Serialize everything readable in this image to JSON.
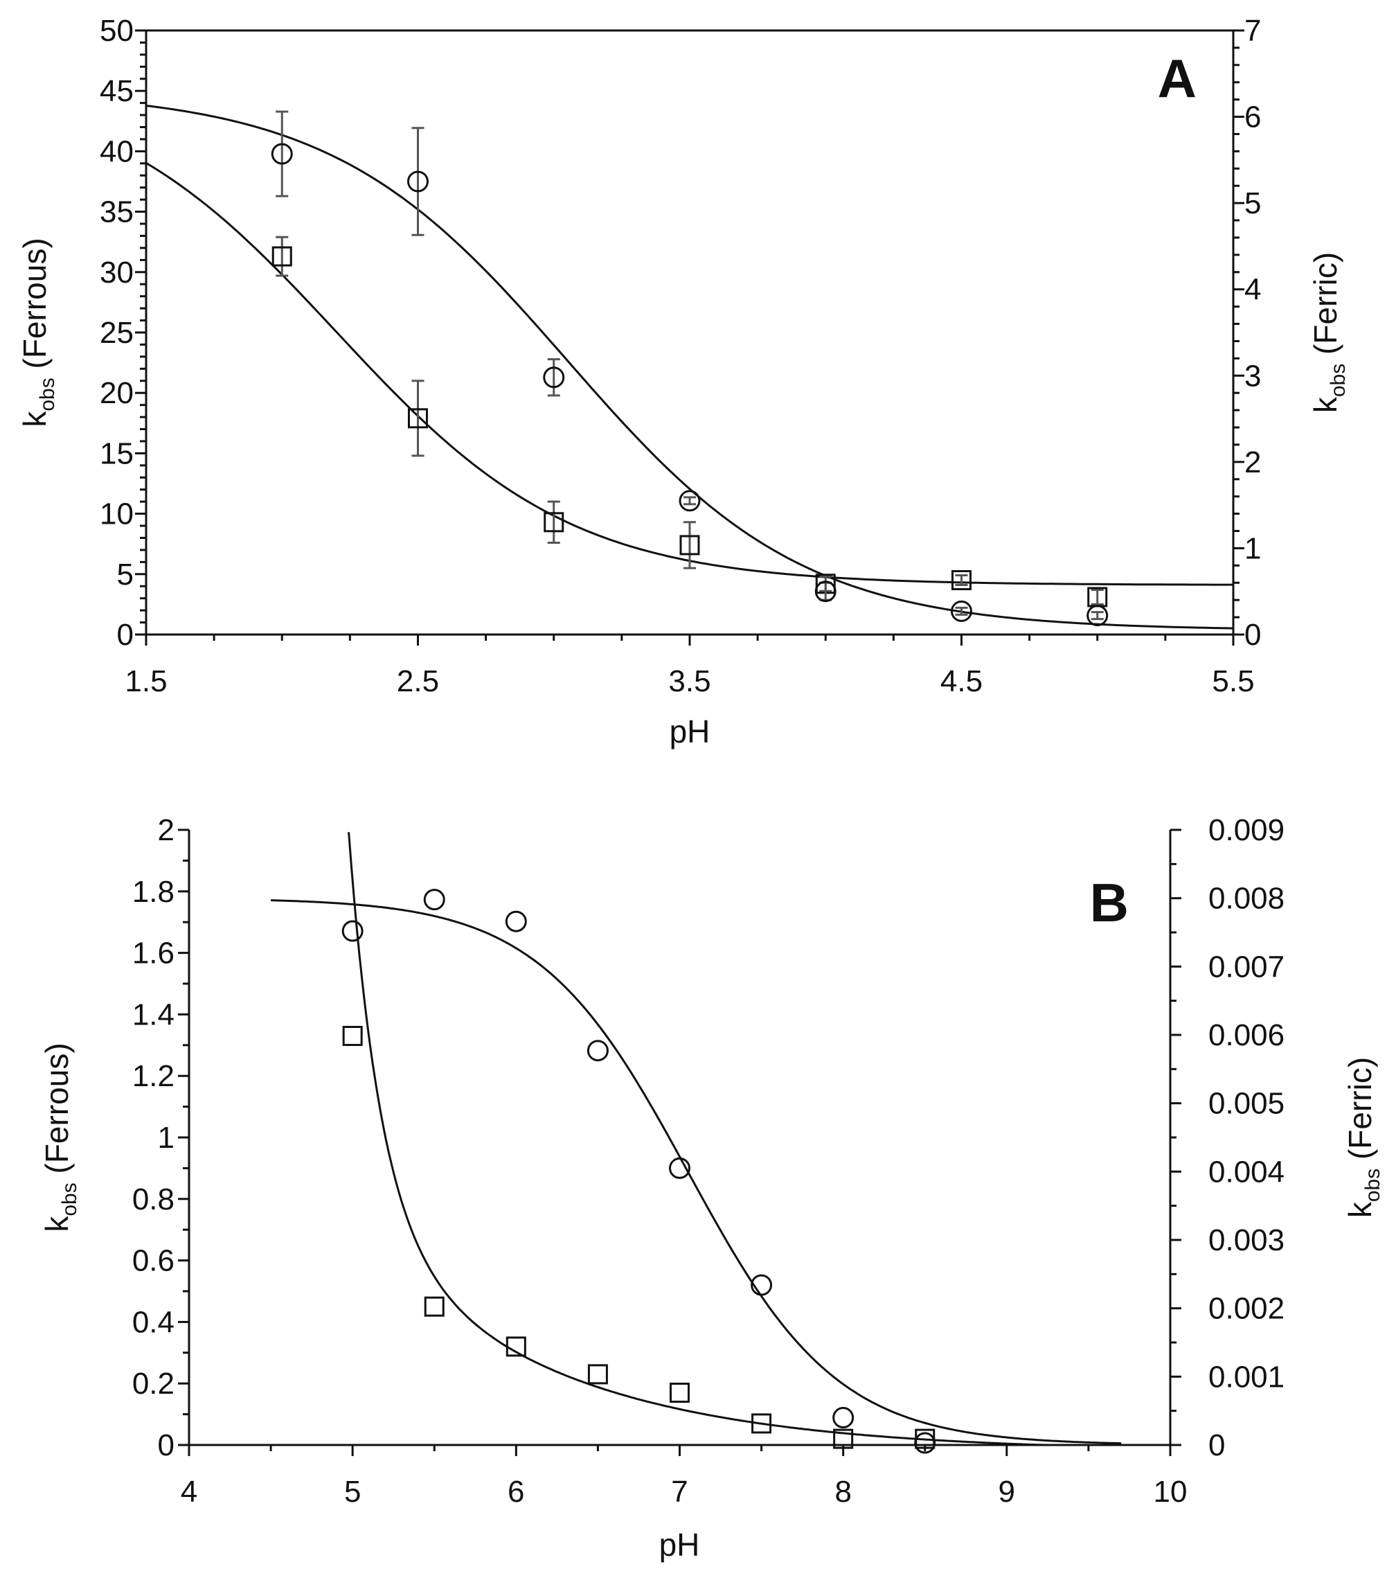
{
  "chart_data": [
    {
      "type": "scatter",
      "panel_label": "A",
      "xlabel": "pH",
      "ylabel_left": {
        "main": "k",
        "sub": "obs",
        "rest": " (Ferrous)"
      },
      "ylabel_right": {
        "main": "k",
        "sub": "obs",
        "rest": " (Ferric)"
      },
      "xlim": [
        1.5,
        5.5
      ],
      "ylim_left": [
        0,
        50
      ],
      "ylim_right": [
        0,
        7
      ],
      "x_ticks": [
        "1.5",
        "2.5",
        "3.5",
        "4.5",
        "5.5"
      ],
      "y_ticks_left": [
        "0",
        "5",
        "10",
        "15",
        "20",
        "25",
        "30",
        "35",
        "40",
        "45",
        "50"
      ],
      "y_ticks_right": [
        "0",
        "1",
        "2",
        "3",
        "4",
        "5",
        "6",
        "7"
      ],
      "series": [
        {
          "name": "Ferrous",
          "marker": "square",
          "axis": "left",
          "x": [
            2.0,
            2.5,
            3.0,
            3.5,
            4.0,
            4.5,
            5.0
          ],
          "y": [
            31.3,
            17.9,
            9.3,
            7.4,
            4.2,
            4.5,
            3.1
          ],
          "err": [
            1.6,
            3.1,
            1.7,
            1.9,
            0.6,
            0.4,
            0.6
          ],
          "fit": {
            "top": 46,
            "bottom": 4.1,
            "pKa": 2.2
          }
        },
        {
          "name": "Ferric",
          "marker": "circle",
          "axis": "right",
          "x": [
            2.0,
            2.5,
            3.0,
            3.5,
            4.0,
            4.5,
            5.0
          ],
          "y": [
            5.57,
            5.25,
            2.98,
            1.55,
            0.5,
            0.27,
            0.22
          ],
          "err": [
            0.49,
            0.62,
            0.21,
            0.04,
            0.1,
            0.04,
            0.04
          ],
          "fit": {
            "top": 6.3,
            "bottom": 0.05,
            "pKa": 3.05
          }
        }
      ]
    },
    {
      "type": "scatter",
      "panel_label": "B",
      "xlabel": "pH",
      "ylabel_left": {
        "main": "k",
        "sub": "obs",
        "rest": " (Ferrous)"
      },
      "ylabel_right": {
        "main": "k",
        "sub": "obs",
        "rest": " (Ferric)"
      },
      "xlim": [
        4,
        10
      ],
      "ylim_left": [
        0,
        2
      ],
      "ylim_right": [
        0,
        0.009
      ],
      "x_ticks": [
        "4",
        "5",
        "6",
        "7",
        "8",
        "9",
        "10"
      ],
      "y_ticks_left": [
        "0",
        "0.2",
        "0.4",
        "0.6",
        "0.8",
        "1",
        "1.2",
        "1.4",
        "1.6",
        "1.8",
        "2"
      ],
      "y_ticks_right": [
        "0",
        "0.001",
        "0.002",
        "0.003",
        "0.004",
        "0.005",
        "0.006",
        "0.007",
        "0.008",
        "0.009"
      ],
      "series": [
        {
          "name": "Ferrous",
          "marker": "square",
          "axis": "left",
          "x": [
            5.0,
            5.5,
            6.0,
            6.5,
            7.0,
            7.5,
            8.0,
            8.5
          ],
          "y": [
            1.33,
            0.45,
            0.32,
            0.23,
            0.17,
            0.07,
            0.02,
            0.02
          ]
        },
        {
          "name": "Ferric",
          "marker": "circle",
          "axis": "right",
          "x": [
            5.0,
            5.5,
            6.0,
            6.5,
            7.0,
            7.5,
            8.0,
            8.5
          ],
          "y": [
            0.00752,
            0.00798,
            0.00766,
            0.00577,
            0.00405,
            0.00234,
            0.0004,
            3e-05
          ]
        }
      ]
    }
  ]
}
